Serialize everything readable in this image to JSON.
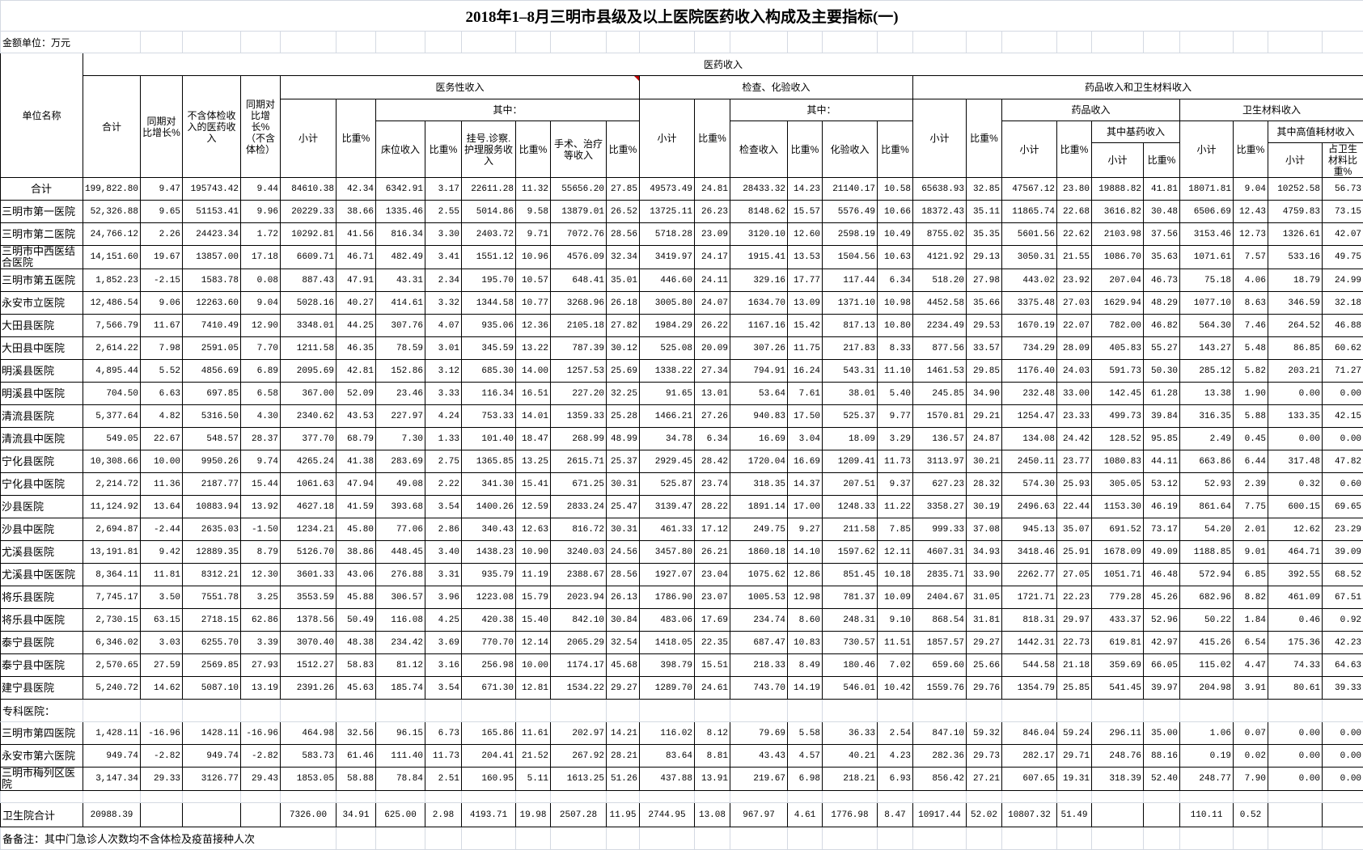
{
  "title": "2018年1–8月三明市县级及以上医院医药收入构成及主要指标(一)",
  "unit_label": "金额单位：万元",
  "header": {
    "unit_name": "单位名称",
    "yiyao": "医药收入",
    "total": "合计",
    "yoy": "同期对比增长%",
    "excl": "不含体检收入的医药收入",
    "yoy_excl": "同期对比增长%（不含体检）",
    "yiwu": "医务性收入",
    "jiancha": "检查、化验收入",
    "yaopin_weicai": "药品收入和卫生材料收入",
    "subtotal": "小计",
    "ratio": "比重%",
    "qizhong": "其中：",
    "bed": "床位收入",
    "reg": "挂号.诊察.护理服务收入",
    "surgery": "手术、治疗等收入",
    "exam": "检查收入",
    "lab": "化验收入",
    "drug": "药品收入",
    "material": "卫生材料收入",
    "essential": "其中基药收入",
    "highvalue": "其中高值耗材收入",
    "mat_ratio": "占卫生材料比重%"
  },
  "rows": [
    {
      "name": "合计",
      "values": [
        "199,822.80",
        "9.47",
        "195743.42",
        "9.44",
        "84610.38",
        "42.34",
        "6342.91",
        "3.17",
        "22611.28",
        "11.32",
        "55656.20",
        "27.85",
        "49573.49",
        "24.81",
        "28433.32",
        "14.23",
        "21140.17",
        "10.58",
        "65638.93",
        "32.85",
        "47567.12",
        "23.80",
        "19888.82",
        "41.81",
        "18071.81",
        "9.04",
        "10252.58",
        "56.73"
      ]
    },
    {
      "name": "三明市第一医院",
      "values": [
        "52,326.88",
        "9.65",
        "51153.41",
        "9.96",
        "20229.33",
        "38.66",
        "1335.46",
        "2.55",
        "5014.86",
        "9.58",
        "13879.01",
        "26.52",
        "13725.11",
        "26.23",
        "8148.62",
        "15.57",
        "5576.49",
        "10.66",
        "18372.43",
        "35.11",
        "11865.74",
        "22.68",
        "3616.82",
        "30.48",
        "6506.69",
        "12.43",
        "4759.83",
        "73.15"
      ]
    },
    {
      "name": "三明市第二医院",
      "values": [
        "24,766.12",
        "2.26",
        "24423.34",
        "1.72",
        "10292.81",
        "41.56",
        "816.34",
        "3.30",
        "2403.72",
        "9.71",
        "7072.76",
        "28.56",
        "5718.28",
        "23.09",
        "3120.10",
        "12.60",
        "2598.19",
        "10.49",
        "8755.02",
        "35.35",
        "5601.56",
        "22.62",
        "2103.98",
        "37.56",
        "3153.46",
        "12.73",
        "1326.61",
        "42.07"
      ]
    },
    {
      "name": "三明市中西医结合医院",
      "values": [
        "14,151.60",
        "19.67",
        "13857.00",
        "17.18",
        "6609.71",
        "46.71",
        "482.49",
        "3.41",
        "1551.12",
        "10.96",
        "4576.09",
        "32.34",
        "3419.97",
        "24.17",
        "1915.41",
        "13.53",
        "1504.56",
        "10.63",
        "4121.92",
        "29.13",
        "3050.31",
        "21.55",
        "1086.70",
        "35.63",
        "1071.61",
        "7.57",
        "533.16",
        "49.75"
      ]
    },
    {
      "name": "三明市第五医院",
      "values": [
        "1,852.23",
        "-2.15",
        "1583.78",
        "0.08",
        "887.43",
        "47.91",
        "43.31",
        "2.34",
        "195.70",
        "10.57",
        "648.41",
        "35.01",
        "446.60",
        "24.11",
        "329.16",
        "17.77",
        "117.44",
        "6.34",
        "518.20",
        "27.98",
        "443.02",
        "23.92",
        "207.04",
        "46.73",
        "75.18",
        "4.06",
        "18.79",
        "24.99"
      ]
    },
    {
      "name": "永安市立医院",
      "values": [
        "12,486.54",
        "9.06",
        "12263.60",
        "9.04",
        "5028.16",
        "40.27",
        "414.61",
        "3.32",
        "1344.58",
        "10.77",
        "3268.96",
        "26.18",
        "3005.80",
        "24.07",
        "1634.70",
        "13.09",
        "1371.10",
        "10.98",
        "4452.58",
        "35.66",
        "3375.48",
        "27.03",
        "1629.94",
        "48.29",
        "1077.10",
        "8.63",
        "346.59",
        "32.18"
      ]
    },
    {
      "name": "大田县医院",
      "values": [
        "7,566.79",
        "11.67",
        "7410.49",
        "12.90",
        "3348.01",
        "44.25",
        "307.76",
        "4.07",
        "935.06",
        "12.36",
        "2105.18",
        "27.82",
        "1984.29",
        "26.22",
        "1167.16",
        "15.42",
        "817.13",
        "10.80",
        "2234.49",
        "29.53",
        "1670.19",
        "22.07",
        "782.00",
        "46.82",
        "564.30",
        "7.46",
        "264.52",
        "46.88"
      ]
    },
    {
      "name": "大田县中医院",
      "values": [
        "2,614.22",
        "7.98",
        "2591.05",
        "7.70",
        "1211.58",
        "46.35",
        "78.59",
        "3.01",
        "345.59",
        "13.22",
        "787.39",
        "30.12",
        "525.08",
        "20.09",
        "307.26",
        "11.75",
        "217.83",
        "8.33",
        "877.56",
        "33.57",
        "734.29",
        "28.09",
        "405.83",
        "55.27",
        "143.27",
        "5.48",
        "86.85",
        "60.62"
      ]
    },
    {
      "name": "明溪县医院",
      "values": [
        "4,895.44",
        "5.52",
        "4856.69",
        "6.89",
        "2095.69",
        "42.81",
        "152.86",
        "3.12",
        "685.30",
        "14.00",
        "1257.53",
        "25.69",
        "1338.22",
        "27.34",
        "794.91",
        "16.24",
        "543.31",
        "11.10",
        "1461.53",
        "29.85",
        "1176.40",
        "24.03",
        "591.73",
        "50.30",
        "285.12",
        "5.82",
        "203.21",
        "71.27"
      ]
    },
    {
      "name": "明溪县中医院",
      "values": [
        "704.50",
        "6.63",
        "697.85",
        "6.58",
        "367.00",
        "52.09",
        "23.46",
        "3.33",
        "116.34",
        "16.51",
        "227.20",
        "32.25",
        "91.65",
        "13.01",
        "53.64",
        "7.61",
        "38.01",
        "5.40",
        "245.85",
        "34.90",
        "232.48",
        "33.00",
        "142.45",
        "61.28",
        "13.38",
        "1.90",
        "0.00",
        "0.00"
      ]
    },
    {
      "name": "清流县医院",
      "values": [
        "5,377.64",
        "4.82",
        "5316.50",
        "4.30",
        "2340.62",
        "43.53",
        "227.97",
        "4.24",
        "753.33",
        "14.01",
        "1359.33",
        "25.28",
        "1466.21",
        "27.26",
        "940.83",
        "17.50",
        "525.37",
        "9.77",
        "1570.81",
        "29.21",
        "1254.47",
        "23.33",
        "499.73",
        "39.84",
        "316.35",
        "5.88",
        "133.35",
        "42.15"
      ]
    },
    {
      "name": "清流县中医院",
      "values": [
        "549.05",
        "22.67",
        "548.57",
        "28.37",
        "377.70",
        "68.79",
        "7.30",
        "1.33",
        "101.40",
        "18.47",
        "268.99",
        "48.99",
        "34.78",
        "6.34",
        "16.69",
        "3.04",
        "18.09",
        "3.29",
        "136.57",
        "24.87",
        "134.08",
        "24.42",
        "128.52",
        "95.85",
        "2.49",
        "0.45",
        "0.00",
        "0.00"
      ]
    },
    {
      "name": "宁化县医院",
      "values": [
        "10,308.66",
        "10.00",
        "9950.26",
        "9.74",
        "4265.24",
        "41.38",
        "283.69",
        "2.75",
        "1365.85",
        "13.25",
        "2615.71",
        "25.37",
        "2929.45",
        "28.42",
        "1720.04",
        "16.69",
        "1209.41",
        "11.73",
        "3113.97",
        "30.21",
        "2450.11",
        "23.77",
        "1080.83",
        "44.11",
        "663.86",
        "6.44",
        "317.48",
        "47.82"
      ]
    },
    {
      "name": "宁化县中医院",
      "values": [
        "2,214.72",
        "11.36",
        "2187.77",
        "15.44",
        "1061.63",
        "47.94",
        "49.08",
        "2.22",
        "341.30",
        "15.41",
        "671.25",
        "30.31",
        "525.87",
        "23.74",
        "318.35",
        "14.37",
        "207.51",
        "9.37",
        "627.23",
        "28.32",
        "574.30",
        "25.93",
        "305.05",
        "53.12",
        "52.93",
        "2.39",
        "0.32",
        "0.60"
      ]
    },
    {
      "name": "沙县医院",
      "values": [
        "11,124.92",
        "13.64",
        "10883.94",
        "13.92",
        "4627.18",
        "41.59",
        "393.68",
        "3.54",
        "1400.26",
        "12.59",
        "2833.24",
        "25.47",
        "3139.47",
        "28.22",
        "1891.14",
        "17.00",
        "1248.33",
        "11.22",
        "3358.27",
        "30.19",
        "2496.63",
        "22.44",
        "1153.30",
        "46.19",
        "861.64",
        "7.75",
        "600.15",
        "69.65"
      ]
    },
    {
      "name": "沙县中医院",
      "values": [
        "2,694.87",
        "-2.44",
        "2635.03",
        "-1.50",
        "1234.21",
        "45.80",
        "77.06",
        "2.86",
        "340.43",
        "12.63",
        "816.72",
        "30.31",
        "461.33",
        "17.12",
        "249.75",
        "9.27",
        "211.58",
        "7.85",
        "999.33",
        "37.08",
        "945.13",
        "35.07",
        "691.52",
        "73.17",
        "54.20",
        "2.01",
        "12.62",
        "23.29"
      ]
    },
    {
      "name": "尤溪县医院",
      "values": [
        "13,191.81",
        "9.42",
        "12889.35",
        "8.79",
        "5126.70",
        "38.86",
        "448.45",
        "3.40",
        "1438.23",
        "10.90",
        "3240.03",
        "24.56",
        "3457.80",
        "26.21",
        "1860.18",
        "14.10",
        "1597.62",
        "12.11",
        "4607.31",
        "34.93",
        "3418.46",
        "25.91",
        "1678.09",
        "49.09",
        "1188.85",
        "9.01",
        "464.71",
        "39.09"
      ]
    },
    {
      "name": "尤溪县中医医院",
      "values": [
        "8,364.11",
        "11.81",
        "8312.21",
        "12.30",
        "3601.33",
        "43.06",
        "276.88",
        "3.31",
        "935.79",
        "11.19",
        "2388.67",
        "28.56",
        "1927.07",
        "23.04",
        "1075.62",
        "12.86",
        "851.45",
        "10.18",
        "2835.71",
        "33.90",
        "2262.77",
        "27.05",
        "1051.71",
        "46.48",
        "572.94",
        "6.85",
        "392.55",
        "68.52"
      ]
    },
    {
      "name": "将乐县医院",
      "values": [
        "7,745.17",
        "3.50",
        "7551.78",
        "3.25",
        "3553.59",
        "45.88",
        "306.57",
        "3.96",
        "1223.08",
        "15.79",
        "2023.94",
        "26.13",
        "1786.90",
        "23.07",
        "1005.53",
        "12.98",
        "781.37",
        "10.09",
        "2404.67",
        "31.05",
        "1721.71",
        "22.23",
        "779.28",
        "45.26",
        "682.96",
        "8.82",
        "461.09",
        "67.51"
      ]
    },
    {
      "name": "将乐县中医院",
      "values": [
        "2,730.15",
        "63.15",
        "2718.15",
        "62.86",
        "1378.56",
        "50.49",
        "116.08",
        "4.25",
        "420.38",
        "15.40",
        "842.10",
        "30.84",
        "483.06",
        "17.69",
        "234.74",
        "8.60",
        "248.31",
        "9.10",
        "868.54",
        "31.81",
        "818.31",
        "29.97",
        "433.37",
        "52.96",
        "50.22",
        "1.84",
        "0.46",
        "0.92"
      ]
    },
    {
      "name": "泰宁县医院",
      "values": [
        "6,346.02",
        "3.03",
        "6255.70",
        "3.39",
        "3070.40",
        "48.38",
        "234.42",
        "3.69",
        "770.70",
        "12.14",
        "2065.29",
        "32.54",
        "1418.05",
        "22.35",
        "687.47",
        "10.83",
        "730.57",
        "11.51",
        "1857.57",
        "29.27",
        "1442.31",
        "22.73",
        "619.81",
        "42.97",
        "415.26",
        "6.54",
        "175.36",
        "42.23"
      ]
    },
    {
      "name": "泰宁县中医院",
      "values": [
        "2,570.65",
        "27.59",
        "2569.85",
        "27.93",
        "1512.27",
        "58.83",
        "81.12",
        "3.16",
        "256.98",
        "10.00",
        "1174.17",
        "45.68",
        "398.79",
        "15.51",
        "218.33",
        "8.49",
        "180.46",
        "7.02",
        "659.60",
        "25.66",
        "544.58",
        "21.18",
        "359.69",
        "66.05",
        "115.02",
        "4.47",
        "74.33",
        "64.63"
      ]
    },
    {
      "name": "建宁县医院",
      "values": [
        "5,240.72",
        "14.62",
        "5087.10",
        "13.19",
        "2391.26",
        "45.63",
        "185.74",
        "3.54",
        "671.30",
        "12.81",
        "1534.22",
        "29.27",
        "1289.70",
        "24.61",
        "743.70",
        "14.19",
        "546.01",
        "10.42",
        "1559.76",
        "29.76",
        "1354.79",
        "25.85",
        "541.45",
        "39.97",
        "204.98",
        "3.91",
        "80.61",
        "39.33"
      ]
    }
  ],
  "special_section_label": "专科医院：",
  "special_rows": [
    {
      "name": "三明市第四医院",
      "values": [
        "1,428.11",
        "-16.96",
        "1428.11",
        "-16.96",
        "464.98",
        "32.56",
        "96.15",
        "6.73",
        "165.86",
        "11.61",
        "202.97",
        "14.21",
        "116.02",
        "8.12",
        "79.69",
        "5.58",
        "36.33",
        "2.54",
        "847.10",
        "59.32",
        "846.04",
        "59.24",
        "296.11",
        "35.00",
        "1.06",
        "0.07",
        "0.00",
        "0.00"
      ]
    },
    {
      "name": "永安市第六医院",
      "values": [
        "949.74",
        "-2.82",
        "949.74",
        "-2.82",
        "583.73",
        "61.46",
        "111.40",
        "11.73",
        "204.41",
        "21.52",
        "267.92",
        "28.21",
        "83.64",
        "8.81",
        "43.43",
        "4.57",
        "40.21",
        "4.23",
        "282.36",
        "29.73",
        "282.17",
        "29.71",
        "248.76",
        "88.16",
        "0.19",
        "0.02",
        "0.00",
        "0.00"
      ]
    },
    {
      "name": "三明市梅列区医院",
      "values": [
        "3,147.34",
        "29.33",
        "3126.77",
        "29.43",
        "1853.05",
        "58.88",
        "78.84",
        "2.51",
        "160.95",
        "5.11",
        "1613.25",
        "51.26",
        "437.88",
        "13.91",
        "219.67",
        "6.98",
        "218.21",
        "6.93",
        "856.42",
        "27.21",
        "607.65",
        "19.31",
        "318.39",
        "52.40",
        "248.77",
        "7.90",
        "0.00",
        "0.00"
      ]
    }
  ],
  "health_center_total": {
    "name": "卫生院合计",
    "values": [
      "20988.39",
      "",
      "",
      "",
      "7326.00",
      "34.91",
      "625.00",
      "2.98",
      "4193.71",
      "19.98",
      "2507.28",
      "11.95",
      "2744.95",
      "13.08",
      "967.97",
      "4.61",
      "1776.98",
      "8.47",
      "10917.44",
      "52.02",
      "10807.32",
      "51.49",
      "",
      "",
      "110.11",
      "0.52",
      "",
      ""
    ]
  },
  "note": "备备注：其中门急诊人次数均不含体检及疫苗接种人次",
  "colors": {
    "border": "#000000",
    "gridline": "#d4d9e2",
    "comment_marker": "#c00000"
  }
}
